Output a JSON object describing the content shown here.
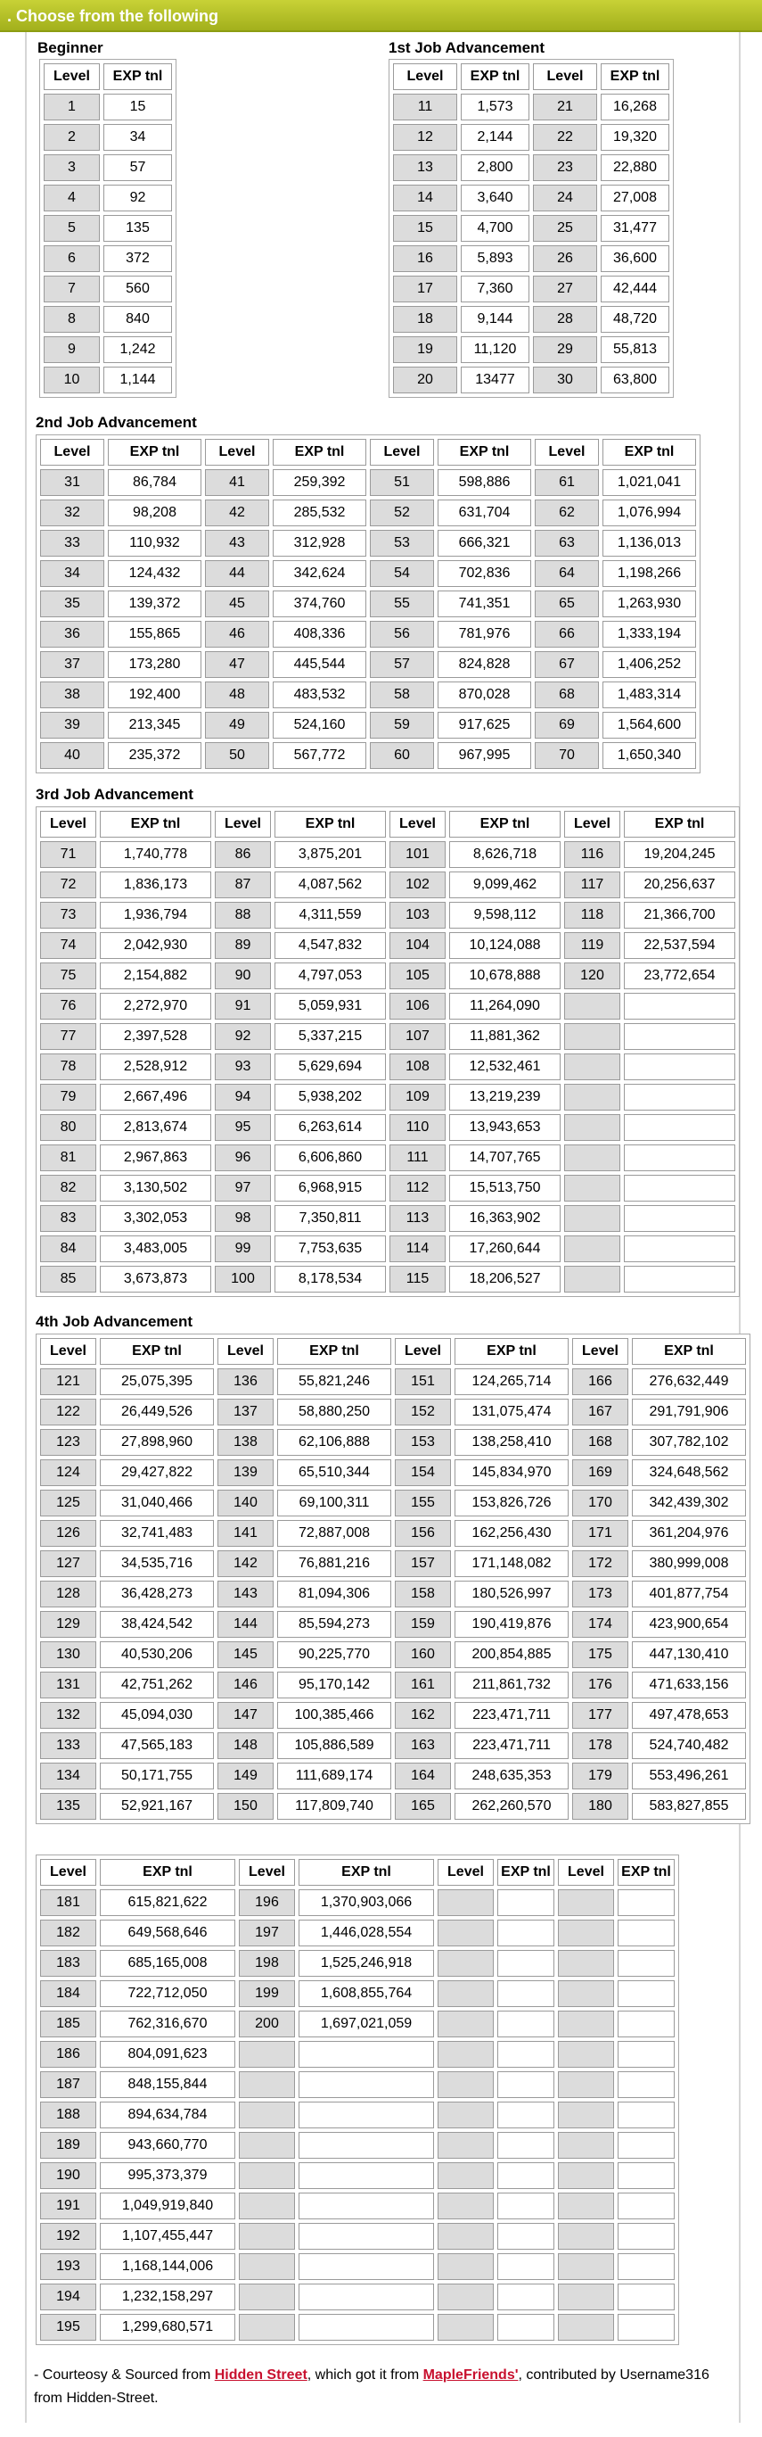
{
  "header": {
    "title": ". Choose from the following"
  },
  "sections": {
    "beginner": {
      "title": "Beginner",
      "headers": [
        "Level",
        "EXP tnl"
      ],
      "rows": [
        [
          "1",
          "15"
        ],
        [
          "2",
          "34"
        ],
        [
          "3",
          "57"
        ],
        [
          "4",
          "92"
        ],
        [
          "5",
          "135"
        ],
        [
          "6",
          "372"
        ],
        [
          "7",
          "560"
        ],
        [
          "8",
          "840"
        ],
        [
          "9",
          "1,242"
        ],
        [
          "10",
          "1,144"
        ]
      ]
    },
    "first_job": {
      "title": "1st Job Advancement",
      "headers": [
        "Level",
        "EXP tnl",
        "Level",
        "EXP tnl"
      ],
      "rows": [
        [
          "11",
          "1,573",
          "21",
          "16,268"
        ],
        [
          "12",
          "2,144",
          "22",
          "19,320"
        ],
        [
          "13",
          "2,800",
          "23",
          "22,880"
        ],
        [
          "14",
          "3,640",
          "24",
          "27,008"
        ],
        [
          "15",
          "4,700",
          "25",
          "31,477"
        ],
        [
          "16",
          "5,893",
          "26",
          "36,600"
        ],
        [
          "17",
          "7,360",
          "27",
          "42,444"
        ],
        [
          "18",
          "9,144",
          "28",
          "48,720"
        ],
        [
          "19",
          "11,120",
          "29",
          "55,813"
        ],
        [
          "20",
          "13477",
          "30",
          "63,800"
        ]
      ]
    },
    "second_job": {
      "title": "2nd Job Advancement",
      "headers": [
        "Level",
        "EXP tnl",
        "Level",
        "EXP tnl",
        "Level",
        "EXP tnl",
        "Level",
        "EXP tnl"
      ],
      "rows": [
        [
          "31",
          "86,784",
          "41",
          "259,392",
          "51",
          "598,886",
          "61",
          "1,021,041"
        ],
        [
          "32",
          "98,208",
          "42",
          "285,532",
          "52",
          "631,704",
          "62",
          "1,076,994"
        ],
        [
          "33",
          "110,932",
          "43",
          "312,928",
          "53",
          "666,321",
          "63",
          "1,136,013"
        ],
        [
          "34",
          "124,432",
          "44",
          "342,624",
          "54",
          "702,836",
          "64",
          "1,198,266"
        ],
        [
          "35",
          "139,372",
          "45",
          "374,760",
          "55",
          "741,351",
          "65",
          "1,263,930"
        ],
        [
          "36",
          "155,865",
          "46",
          "408,336",
          "56",
          "781,976",
          "66",
          "1,333,194"
        ],
        [
          "37",
          "173,280",
          "47",
          "445,544",
          "57",
          "824,828",
          "67",
          "1,406,252"
        ],
        [
          "38",
          "192,400",
          "48",
          "483,532",
          "58",
          "870,028",
          "68",
          "1,483,314"
        ],
        [
          "39",
          "213,345",
          "49",
          "524,160",
          "59",
          "917,625",
          "69",
          "1,564,600"
        ],
        [
          "40",
          "235,372",
          "50",
          "567,772",
          "60",
          "967,995",
          "70",
          "1,650,340"
        ]
      ]
    },
    "third_job": {
      "title": "3rd Job Advancement",
      "headers": [
        "Level",
        "EXP tnl",
        "Level",
        "EXP tnl",
        "Level",
        "EXP tnl",
        "Level",
        "EXP tnl"
      ],
      "rows": [
        [
          "71",
          "1,740,778",
          "86",
          "3,875,201",
          "101",
          "8,626,718",
          "116",
          "19,204,245"
        ],
        [
          "72",
          "1,836,173",
          "87",
          "4,087,562",
          "102",
          "9,099,462",
          "117",
          "20,256,637"
        ],
        [
          "73",
          "1,936,794",
          "88",
          "4,311,559",
          "103",
          "9,598,112",
          "118",
          "21,366,700"
        ],
        [
          "74",
          "2,042,930",
          "89",
          "4,547,832",
          "104",
          "10,124,088",
          "119",
          "22,537,594"
        ],
        [
          "75",
          "2,154,882",
          "90",
          "4,797,053",
          "105",
          "10,678,888",
          "120",
          "23,772,654"
        ],
        [
          "76",
          "2,272,970",
          "91",
          "5,059,931",
          "106",
          "11,264,090",
          "",
          ""
        ],
        [
          "77",
          "2,397,528",
          "92",
          "5,337,215",
          "107",
          "11,881,362",
          "",
          ""
        ],
        [
          "78",
          "2,528,912",
          "93",
          "5,629,694",
          "108",
          "12,532,461",
          "",
          ""
        ],
        [
          "79",
          "2,667,496",
          "94",
          "5,938,202",
          "109",
          "13,219,239",
          "",
          ""
        ],
        [
          "80",
          "2,813,674",
          "95",
          "6,263,614",
          "110",
          "13,943,653",
          "",
          ""
        ],
        [
          "81",
          "2,967,863",
          "96",
          "6,606,860",
          "111",
          "14,707,765",
          "",
          ""
        ],
        [
          "82",
          "3,130,502",
          "97",
          "6,968,915",
          "112",
          "15,513,750",
          "",
          ""
        ],
        [
          "83",
          "3,302,053",
          "98",
          "7,350,811",
          "113",
          "16,363,902",
          "",
          ""
        ],
        [
          "84",
          "3,483,005",
          "99",
          "7,753,635",
          "114",
          "17,260,644",
          "",
          ""
        ],
        [
          "85",
          "3,673,873",
          "100",
          "8,178,534",
          "115",
          "18,206,527",
          "",
          ""
        ]
      ]
    },
    "fourth_job": {
      "title": "4th Job Advancement",
      "headers": [
        "Level",
        "EXP tnl",
        "Level",
        "EXP tnl",
        "Level",
        "EXP tnl",
        "Level",
        "EXP tnl"
      ],
      "rows": [
        [
          "121",
          "25,075,395",
          "136",
          "55,821,246",
          "151",
          "124,265,714",
          "166",
          "276,632,449"
        ],
        [
          "122",
          "26,449,526",
          "137",
          "58,880,250",
          "152",
          "131,075,474",
          "167",
          "291,791,906"
        ],
        [
          "123",
          "27,898,960",
          "138",
          "62,106,888",
          "153",
          "138,258,410",
          "168",
          "307,782,102"
        ],
        [
          "124",
          "29,427,822",
          "139",
          "65,510,344",
          "154",
          "145,834,970",
          "169",
          "324,648,562"
        ],
        [
          "125",
          "31,040,466",
          "140",
          "69,100,311",
          "155",
          "153,826,726",
          "170",
          "342,439,302"
        ],
        [
          "126",
          "32,741,483",
          "141",
          "72,887,008",
          "156",
          "162,256,430",
          "171",
          "361,204,976"
        ],
        [
          "127",
          "34,535,716",
          "142",
          "76,881,216",
          "157",
          "171,148,082",
          "172",
          "380,999,008"
        ],
        [
          "128",
          "36,428,273",
          "143",
          "81,094,306",
          "158",
          "180,526,997",
          "173",
          "401,877,754"
        ],
        [
          "129",
          "38,424,542",
          "144",
          "85,594,273",
          "159",
          "190,419,876",
          "174",
          "423,900,654"
        ],
        [
          "130",
          "40,530,206",
          "145",
          "90,225,770",
          "160",
          "200,854,885",
          "175",
          "447,130,410"
        ],
        [
          "131",
          "42,751,262",
          "146",
          "95,170,142",
          "161",
          "211,861,732",
          "176",
          "471,633,156"
        ],
        [
          "132",
          "45,094,030",
          "147",
          "100,385,466",
          "162",
          "223,471,711",
          "177",
          "497,478,653"
        ],
        [
          "133",
          "47,565,183",
          "148",
          "105,886,589",
          "163",
          "223,471,711",
          "178",
          "524,740,482"
        ],
        [
          "134",
          "50,171,755",
          "149",
          "111,689,174",
          "164",
          "248,635,353",
          "179",
          "553,496,261"
        ],
        [
          "135",
          "52,921,167",
          "150",
          "117,809,740",
          "165",
          "262,260,570",
          "180",
          "583,827,855"
        ]
      ]
    },
    "fifth": {
      "headers": [
        "Level",
        "EXP tnl",
        "Level",
        "EXP tnl",
        "Level",
        "EXP tnl",
        "Level",
        "EXP tnl"
      ],
      "rows": [
        [
          "181",
          "615,821,622",
          "196",
          "1,370,903,066",
          "",
          "",
          "",
          ""
        ],
        [
          "182",
          "649,568,646",
          "197",
          "1,446,028,554",
          "",
          "",
          "",
          ""
        ],
        [
          "183",
          "685,165,008",
          "198",
          "1,525,246,918",
          "",
          "",
          "",
          ""
        ],
        [
          "184",
          "722,712,050",
          "199",
          "1,608,855,764",
          "",
          "",
          "",
          ""
        ],
        [
          "185",
          "762,316,670",
          "200",
          "1,697,021,059",
          "",
          "",
          "",
          ""
        ],
        [
          "186",
          "804,091,623",
          "",
          "",
          "",
          "",
          "",
          ""
        ],
        [
          "187",
          "848,155,844",
          "",
          "",
          "",
          "",
          "",
          ""
        ],
        [
          "188",
          "894,634,784",
          "",
          "",
          "",
          "",
          "",
          ""
        ],
        [
          "189",
          "943,660,770",
          "",
          "",
          "",
          "",
          "",
          ""
        ],
        [
          "190",
          "995,373,379",
          "",
          "",
          "",
          "",
          "",
          ""
        ],
        [
          "191",
          "1,049,919,840",
          "",
          "",
          "",
          "",
          "",
          ""
        ],
        [
          "192",
          "1,107,455,447",
          "",
          "",
          "",
          "",
          "",
          ""
        ],
        [
          "193",
          "1,168,144,006",
          "",
          "",
          "",
          "",
          "",
          ""
        ],
        [
          "194",
          "1,232,158,297",
          "",
          "",
          "",
          "",
          "",
          ""
        ],
        [
          "195",
          "1,299,680,571",
          "",
          "",
          "",
          "",
          "",
          ""
        ]
      ]
    }
  },
  "footer": {
    "prefix": "- Courteosy & Sourced from ",
    "link1": "Hidden Street",
    "middle": ", which got it from ",
    "link2": "MapleFriends'",
    "suffix": ", contributed by Username316 from Hidden-Street."
  },
  "colors": {
    "header_bg": "#b4c128",
    "level_cell": "#dcdcdc",
    "link": "#c8102e"
  }
}
